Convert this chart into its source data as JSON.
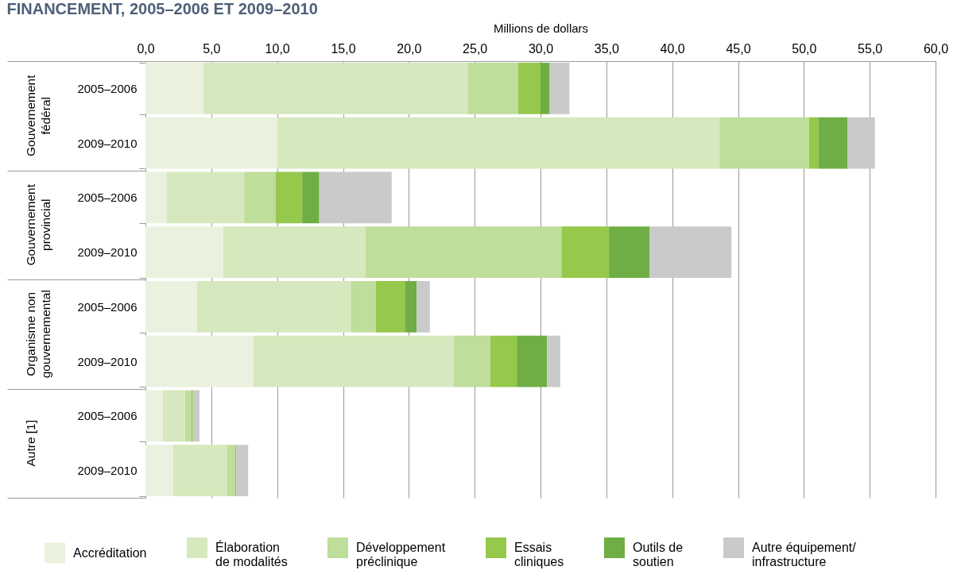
{
  "chart_data": {
    "type": "bar",
    "orientation": "horizontal",
    "stacked": true,
    "title": "FINANCEMENT, 2005–2006 ET 2009–2010",
    "xlabel": "Millions de dollars",
    "categories": [
      "2005–2006",
      "2009–2010",
      "2005–2006",
      "2009–2010",
      "2005–2006",
      "2009–2010",
      "2005–2006",
      "2009–2010"
    ],
    "annotations": [
      "Gouvernement fédéral",
      "Gouvernement provincial",
      "Organisme non gouvernemental",
      "Autre [1]"
    ],
    "series": [
      {
        "name": "Accréditation",
        "color": "#eaf2df",
        "values": [
          4.4,
          10.0,
          1.6,
          5.9,
          3.9,
          8.2,
          1.3,
          2.1
        ]
      },
      {
        "name": "Élaboration de modalités",
        "color": "#d6e8bd",
        "values": [
          20.1,
          33.6,
          5.9,
          10.8,
          11.7,
          15.2,
          1.7,
          4.1
        ]
      },
      {
        "name": "Développement préclinique",
        "color": "#bfdd9b",
        "values": [
          3.8,
          6.8,
          2.4,
          14.9,
          1.9,
          2.8,
          0.5,
          0.6
        ]
      },
      {
        "name": "Essais cliniques",
        "color": "#95c84b",
        "values": [
          1.7,
          0.7,
          2.0,
          3.6,
          2.2,
          2.0,
          0.1,
          0.1
        ]
      },
      {
        "name": "Outils de soutien",
        "color": "#6fae44",
        "values": [
          0.7,
          2.2,
          1.3,
          3.1,
          0.9,
          2.3,
          null,
          null
        ]
      },
      {
        "name": "Autre équipement/infrastructure",
        "color": "#cacaca",
        "values": [
          1.5,
          2.1,
          5.5,
          6.2,
          1.0,
          1.0,
          0.5,
          0.9
        ]
      }
    ],
    "xlim": [
      0,
      60
    ],
    "xticks": [
      {
        "value": 0,
        "label": "0,0"
      },
      {
        "value": 5,
        "label": "5,0"
      },
      {
        "value": 10,
        "label": "10,0"
      },
      {
        "value": 15,
        "label": "15,0"
      },
      {
        "value": 20,
        "label": "20,0"
      },
      {
        "value": 25,
        "label": "25,0"
      },
      {
        "value": 30,
        "label": "30,0"
      },
      {
        "value": 35,
        "label": "35,0"
      },
      {
        "value": 40,
        "label": "40,0"
      },
      {
        "value": 45,
        "label": "45,0"
      },
      {
        "value": 50,
        "label": "50,0"
      },
      {
        "value": 55,
        "label": "55,0"
      },
      {
        "value": 60,
        "label": "60,0"
      }
    ],
    "grid": "x",
    "legend": "bottom"
  }
}
